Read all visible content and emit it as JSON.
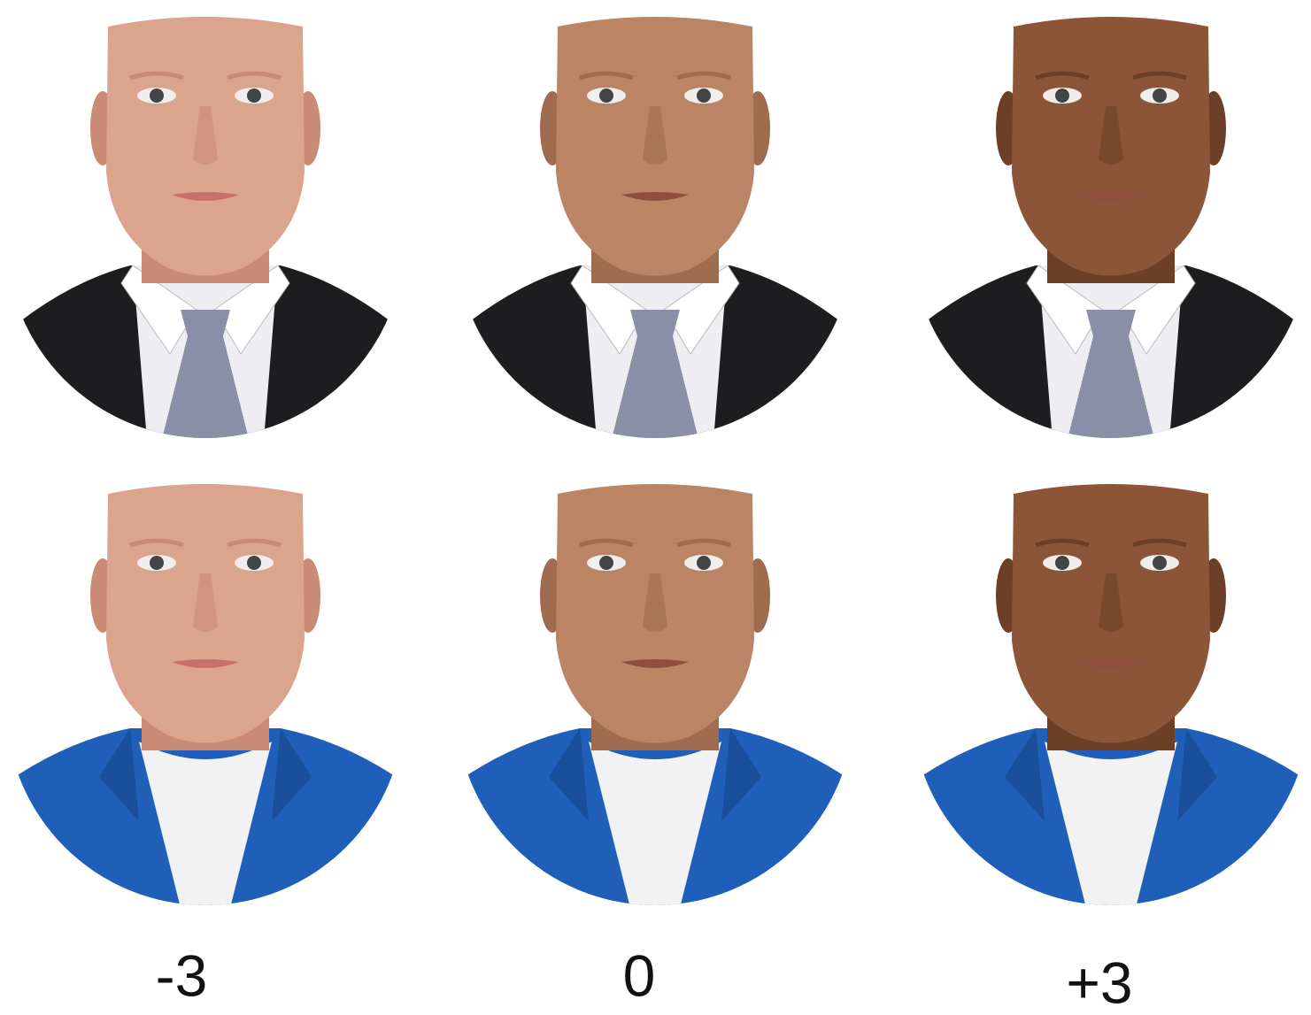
{
  "labels": [
    "-3",
    "0",
    "+3"
  ]
}
